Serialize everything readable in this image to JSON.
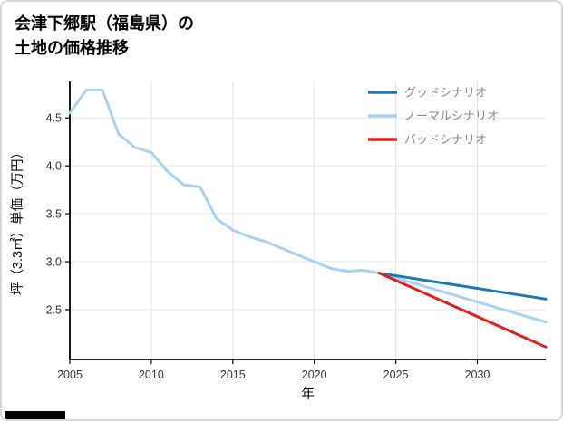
{
  "title": {
    "line1": "会津下郷駅（福島県）の",
    "line2": "土地の価格推移"
  },
  "chart_data": {
    "type": "line",
    "title": "会津下郷駅（福島県）の土地の価格推移",
    "xlabel": "年",
    "ylabel": "坪（3.3㎡）単価（万円）",
    "xlim": [
      2005,
      2034.2
    ],
    "ylim": [
      1.98,
      4.88
    ],
    "x_ticks": [
      2005,
      2010,
      2015,
      2020,
      2025,
      2030
    ],
    "y_ticks": [
      2.5,
      3.0,
      3.5,
      4.0,
      4.5
    ],
    "grid": true,
    "legend_position": "top-right",
    "axis_color": "#000000",
    "grid_color": "#e3e3e3",
    "tick_label_color": "#333333",
    "legend_text_color": "#8a8a8a",
    "series": [
      {
        "name": "グッドシナリオ",
        "color": "#1f77b4",
        "x": [
          2024,
          2034.2
        ],
        "y": [
          2.88,
          2.61
        ]
      },
      {
        "name": "ノーマルシナリオ",
        "color": "#a6d2f4",
        "x": [
          2005,
          2006,
          2007,
          2008,
          2009,
          2010,
          2011,
          2012,
          2013,
          2014,
          2015,
          2016,
          2017,
          2018,
          2019,
          2020,
          2021,
          2022,
          2023,
          2024,
          2034.2
        ],
        "y": [
          4.55,
          4.79,
          4.79,
          4.33,
          4.19,
          4.14,
          3.94,
          3.8,
          3.78,
          3.45,
          3.33,
          3.26,
          3.21,
          3.14,
          3.07,
          3.0,
          2.93,
          2.9,
          2.91,
          2.88,
          2.37
        ]
      },
      {
        "name": "バッドシナリオ",
        "color": "#e3211c",
        "x": [
          2024,
          2034.2
        ],
        "y": [
          2.88,
          2.11
        ]
      }
    ]
  }
}
